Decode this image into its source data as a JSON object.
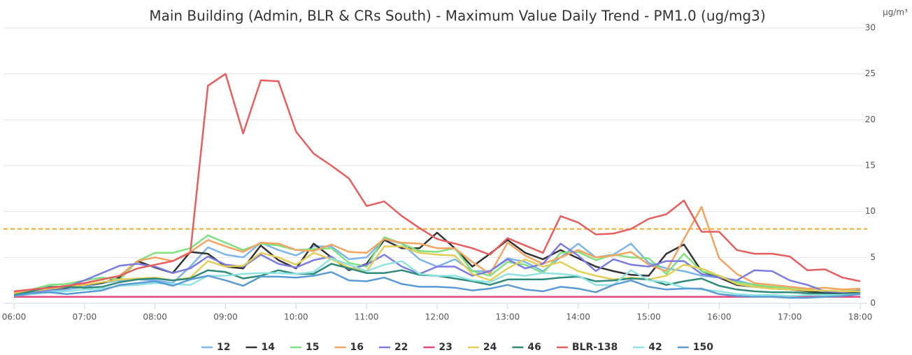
{
  "chart_data": {
    "type": "line",
    "title": "Main Building (Admin, BLR & CRs South) - Maximum Value Daily Trend - PM1.0 (ug/mg3)",
    "y_unit": "µg/m³",
    "categories": [
      "06:00",
      null,
      null,
      null,
      "07:00",
      null,
      null,
      null,
      "08:00",
      null,
      null,
      null,
      "09:00",
      null,
      null,
      null,
      "10:00",
      null,
      null,
      null,
      "11:00",
      null,
      null,
      null,
      "12:00",
      null,
      null,
      null,
      "13:00",
      null,
      null,
      null,
      "14:00",
      null,
      null,
      null,
      "15:00",
      null,
      null,
      null,
      "16:00",
      null,
      null,
      null,
      "17:00",
      null,
      null,
      null,
      "18:00"
    ],
    "ylim": [
      0,
      30
    ],
    "yticks": [
      0,
      5,
      10,
      15,
      20,
      25,
      30
    ],
    "grid": true,
    "threshold": 8.1,
    "threshold_color": "#f5a623",
    "legend": "bottom",
    "series": [
      {
        "name": "12",
        "color": "#7cb5ec",
        "values": [
          0.8,
          1.0,
          1.3,
          1.5,
          1.8,
          2.2,
          2.5,
          2.6,
          2.5,
          2.2,
          4.0,
          6.1,
          5.3,
          5.0,
          6.6,
          5.8,
          5.2,
          6.2,
          6.2,
          4.8,
          5.0,
          7.0,
          6.5,
          4.8,
          4.0,
          4.8,
          3.5,
          3.5,
          4.9,
          4.5,
          3.5,
          5.0,
          6.5,
          5.0,
          5.3,
          6.5,
          4.4,
          3.8,
          3.5,
          3.0,
          2.8,
          2.5,
          2.0,
          1.7,
          1.5,
          1.3,
          1.2,
          1.2,
          1.2
        ]
      },
      {
        "name": "14",
        "color": "#333333",
        "values": [
          1.0,
          1.2,
          1.5,
          1.7,
          2.0,
          2.2,
          2.8,
          4.6,
          3.9,
          3.3,
          5.6,
          5.4,
          4.0,
          3.8,
          6.3,
          4.7,
          3.8,
          6.5,
          5.0,
          3.6,
          4.3,
          6.9,
          6.0,
          6.0,
          7.7,
          6.0,
          4.0,
          5.4,
          6.9,
          5.5,
          4.8,
          5.8,
          4.9,
          4.0,
          3.5,
          3.1,
          3.0,
          5.4,
          6.4,
          3.5,
          2.8,
          2.0,
          1.8,
          1.6,
          1.5,
          1.3,
          1.1,
          1.1,
          1.3
        ]
      },
      {
        "name": "15",
        "color": "#7ee27e",
        "values": [
          1.0,
          1.5,
          2.0,
          2.1,
          2.5,
          2.8,
          2.6,
          4.6,
          5.5,
          5.5,
          6.0,
          7.4,
          6.6,
          5.8,
          6.5,
          6.3,
          5.8,
          5.9,
          6.0,
          4.4,
          4.0,
          7.2,
          6.5,
          5.7,
          5.6,
          6.0,
          3.5,
          3.0,
          4.5,
          4.2,
          3.3,
          5.5,
          5.6,
          4.7,
          5.3,
          5.0,
          4.9,
          3.2,
          5.4,
          3.5,
          3.0,
          2.3,
          2.0,
          1.8,
          1.6,
          1.5,
          1.3,
          1.3,
          1.4
        ]
      },
      {
        "name": "16",
        "color": "#f4a460",
        "values": [
          1.2,
          1.4,
          1.6,
          1.8,
          2.2,
          2.6,
          3.0,
          4.6,
          5.0,
          4.6,
          5.6,
          6.9,
          6.2,
          5.6,
          6.6,
          6.5,
          5.8,
          5.7,
          6.4,
          5.6,
          5.5,
          7.0,
          6.6,
          6.5,
          6.0,
          6.0,
          4.5,
          3.2,
          6.6,
          5.2,
          4.3,
          5.0,
          5.8,
          5.0,
          5.2,
          5.6,
          4.2,
          3.5,
          7.0,
          10.5,
          4.9,
          3.2,
          2.2,
          2.0,
          1.8,
          1.6,
          1.7,
          1.5,
          1.6
        ]
      },
      {
        "name": "22",
        "color": "#7b7be0",
        "values": [
          0.9,
          1.2,
          1.5,
          1.8,
          2.5,
          3.3,
          4.1,
          4.3,
          4.0,
          3.3,
          3.8,
          5.1,
          4.2,
          4.0,
          5.3,
          4.3,
          3.9,
          4.7,
          5.1,
          3.7,
          4.2,
          5.3,
          4.0,
          3.2,
          4.0,
          4.0,
          3.0,
          3.5,
          4.8,
          3.8,
          4.3,
          6.5,
          5.2,
          3.5,
          4.8,
          4.2,
          4.0,
          4.6,
          4.6,
          3.2,
          2.8,
          2.5,
          3.6,
          3.5,
          2.5,
          2.0,
          1.3,
          1.2,
          1.4
        ]
      },
      {
        "name": "23",
        "color": "#e6457a",
        "values": [
          0.7,
          0.7,
          0.7,
          0.7,
          0.7,
          0.7,
          0.7,
          0.7,
          0.7,
          0.7,
          0.7,
          0.7,
          0.7,
          0.7,
          0.7,
          0.7,
          0.7,
          0.7,
          0.7,
          0.7,
          0.7,
          0.7,
          0.7,
          0.7,
          0.7,
          0.7,
          0.7,
          0.7,
          0.7,
          0.7,
          0.7,
          0.7,
          0.7,
          0.7,
          0.7,
          0.7,
          0.7,
          0.7,
          0.7,
          0.7,
          0.7,
          0.7,
          0.7,
          0.7,
          0.7,
          0.7,
          0.7,
          0.7,
          0.7
        ]
      },
      {
        "name": "24",
        "color": "#e3cf57",
        "values": [
          1.0,
          1.3,
          1.6,
          1.8,
          2.0,
          2.3,
          2.6,
          2.7,
          2.8,
          2.5,
          2.8,
          4.6,
          4.0,
          4.1,
          5.5,
          5.0,
          4.2,
          5.5,
          4.8,
          3.9,
          3.5,
          6.2,
          6.2,
          5.5,
          5.3,
          5.2,
          3.2,
          2.5,
          3.8,
          4.8,
          4.0,
          4.5,
          3.5,
          3.0,
          2.6,
          2.8,
          2.6,
          3.0,
          4.2,
          3.8,
          3.0,
          2.1,
          1.8,
          1.6,
          1.5,
          1.4,
          1.4,
          1.3,
          1.3
        ]
      },
      {
        "name": "46",
        "color": "#2e8b7a",
        "values": [
          0.9,
          1.3,
          1.8,
          1.8,
          1.7,
          1.8,
          2.3,
          2.6,
          2.7,
          2.5,
          2.7,
          3.6,
          3.4,
          2.7,
          3.0,
          3.6,
          3.2,
          3.2,
          4.3,
          3.8,
          3.3,
          3.3,
          3.6,
          3.1,
          3.0,
          2.7,
          2.4,
          2.0,
          2.6,
          2.6,
          2.6,
          2.8,
          2.9,
          2.4,
          2.5,
          2.7,
          2.6,
          2.0,
          2.4,
          2.7,
          1.9,
          1.5,
          1.3,
          1.2,
          1.2,
          1.1,
          1.0,
          1.0,
          1.1
        ]
      },
      {
        "name": "BLR-138",
        "color": "#e85d5d",
        "values": [
          1.3,
          1.5,
          1.7,
          1.9,
          2.2,
          2.6,
          3.0,
          3.8,
          4.2,
          4.6,
          5.5,
          23.7,
          25.0,
          18.5,
          24.3,
          24.2,
          18.7,
          16.3,
          15.0,
          13.6,
          10.6,
          11.1,
          9.5,
          8.2,
          7.0,
          6.5,
          6.0,
          5.3,
          7.1,
          6.3,
          5.5,
          9.5,
          8.8,
          7.5,
          7.6,
          8.1,
          9.2,
          9.7,
          11.2,
          7.8,
          7.8,
          5.8,
          5.4,
          5.4,
          5.1,
          3.6,
          3.7,
          2.8,
          2.4
        ]
      },
      {
        "name": "42",
        "color": "#8fe3e0",
        "values": [
          0.8,
          1.0,
          1.2,
          1.3,
          1.5,
          1.6,
          1.9,
          2.0,
          2.2,
          2.1,
          2.0,
          3.0,
          3.0,
          3.2,
          3.3,
          3.3,
          3.2,
          3.4,
          4.9,
          4.2,
          3.5,
          4.2,
          4.6,
          3.2,
          3.0,
          3.0,
          2.5,
          2.3,
          3.2,
          3.0,
          3.3,
          3.2,
          3.0,
          2.0,
          2.0,
          3.6,
          2.5,
          2.3,
          1.7,
          1.5,
          1.3,
          1.0,
          0.9,
          0.9,
          0.8,
          0.9,
          0.9,
          0.9,
          1.0
        ]
      },
      {
        "name": "150",
        "color": "#5b9bd5",
        "values": [
          0.8,
          1.1,
          1.2,
          1.0,
          1.2,
          1.4,
          2.0,
          2.2,
          2.4,
          1.9,
          2.6,
          3.0,
          2.5,
          1.9,
          2.9,
          2.9,
          2.8,
          3.0,
          3.4,
          2.5,
          2.4,
          2.8,
          2.1,
          1.8,
          1.8,
          1.7,
          1.4,
          1.6,
          2.0,
          1.5,
          1.3,
          1.8,
          1.6,
          1.2,
          2.0,
          2.5,
          1.8,
          1.5,
          1.6,
          1.6,
          1.0,
          0.8,
          0.7,
          0.7,
          0.6,
          0.6,
          0.7,
          0.8,
          1.0
        ]
      }
    ]
  }
}
